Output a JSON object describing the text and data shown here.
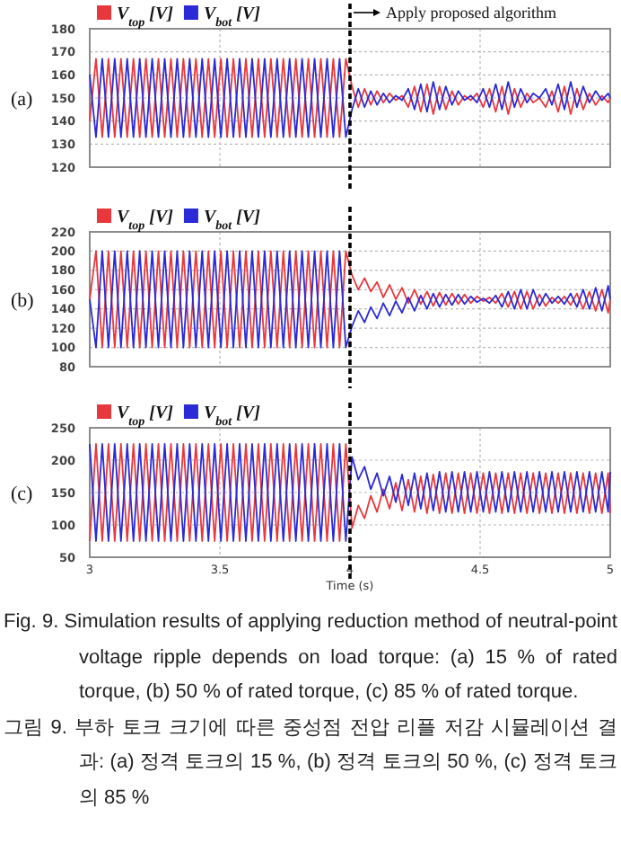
{
  "chart_data": [
    {
      "type": "line",
      "annotations": [
        "(a)"
      ],
      "legend": "top",
      "grid": true,
      "tick_labels": "y",
      "xlim": [
        3,
        5
      ],
      "xticks": [
        3,
        3.5,
        4,
        4.5,
        5
      ],
      "ylim": [
        120,
        180
      ],
      "yticks": [
        120,
        130,
        140,
        150,
        160,
        170,
        180
      ],
      "ref_lines": [
        {
          "axis": "x",
          "value": 4,
          "label": "Apply proposed algorithm",
          "line_style": "dashed",
          "color": "#000000"
        }
      ],
      "x": [
        3.0,
        3.024,
        3.048,
        3.072,
        3.096,
        3.12,
        3.144,
        3.168,
        3.192,
        3.216,
        3.24,
        3.264,
        3.288,
        3.312,
        3.336,
        3.36,
        3.384,
        3.408,
        3.432,
        3.456,
        3.48,
        3.504,
        3.528,
        3.552,
        3.576,
        3.6,
        3.624,
        3.648,
        3.672,
        3.696,
        3.72,
        3.744,
        3.768,
        3.792,
        3.816,
        3.84,
        3.864,
        3.888,
        3.912,
        3.936,
        3.96,
        3.984,
        4.008,
        4.032,
        4.056,
        4.08,
        4.104,
        4.128,
        4.152,
        4.176,
        4.2,
        4.224,
        4.248,
        4.272,
        4.296,
        4.32,
        4.344,
        4.368,
        4.392,
        4.416,
        4.44,
        4.464,
        4.488,
        4.512,
        4.536,
        4.56,
        4.584,
        4.608,
        4.632,
        4.656,
        4.68,
        4.704,
        4.728,
        4.752,
        4.776,
        4.8,
        4.824,
        4.848,
        4.872,
        4.896,
        4.92,
        4.944,
        4.968,
        4.992,
        5.0
      ],
      "series": [
        {
          "name": "V$_{top}$ [V]",
          "color": "#e8383d",
          "values": [
            140,
            167,
            133,
            167,
            133,
            167,
            133,
            167,
            133,
            167,
            133,
            167,
            133,
            167,
            133,
            167,
            133,
            167,
            133,
            167,
            133,
            167,
            133,
            167,
            133,
            167,
            133,
            167,
            133,
            167,
            133,
            167,
            133,
            167,
            133,
            167,
            133,
            167,
            133,
            167,
            133,
            167,
            155,
            146,
            154,
            147,
            153,
            148,
            152,
            149,
            151,
            146,
            155,
            144,
            156,
            143,
            155,
            145,
            153,
            147,
            151,
            149,
            152,
            146,
            154,
            144,
            155,
            143,
            154,
            146,
            152,
            148,
            150,
            146,
            153,
            144,
            155,
            143,
            154,
            145,
            152,
            147,
            151,
            148,
            150
          ]
        },
        {
          "name": "V$_{bot}$ [V]",
          "color": "#2a2ad6",
          "values": [
            160,
            133,
            167,
            133,
            167,
            133,
            167,
            133,
            167,
            133,
            167,
            133,
            167,
            133,
            167,
            133,
            167,
            133,
            167,
            133,
            167,
            133,
            167,
            133,
            167,
            133,
            167,
            133,
            167,
            133,
            167,
            133,
            167,
            133,
            167,
            133,
            167,
            133,
            167,
            133,
            167,
            133,
            145,
            154,
            146,
            153,
            147,
            152,
            148,
            151,
            149,
            154,
            145,
            156,
            144,
            157,
            145,
            155,
            147,
            153,
            149,
            151,
            148,
            154,
            146,
            156,
            145,
            157,
            146,
            154,
            148,
            152,
            150,
            154,
            147,
            156,
            145,
            157,
            146,
            155,
            148,
            153,
            149,
            152,
            150
          ]
        }
      ]
    },
    {
      "type": "line",
      "annotations": [
        "(b)"
      ],
      "legend": "top",
      "grid": true,
      "tick_labels": "y",
      "xlim": [
        3,
        5
      ],
      "xticks": [
        3,
        3.5,
        4,
        4.5,
        5
      ],
      "ylim": [
        80,
        220
      ],
      "yticks": [
        80,
        100,
        120,
        140,
        160,
        180,
        200,
        220
      ],
      "ref_lines": [
        {
          "axis": "x",
          "value": 4,
          "line_style": "dashed",
          "color": "#000000"
        }
      ],
      "x": [
        3.0,
        3.024,
        3.048,
        3.072,
        3.096,
        3.12,
        3.144,
        3.168,
        3.192,
        3.216,
        3.24,
        3.264,
        3.288,
        3.312,
        3.336,
        3.36,
        3.384,
        3.408,
        3.432,
        3.456,
        3.48,
        3.504,
        3.528,
        3.552,
        3.576,
        3.6,
        3.624,
        3.648,
        3.672,
        3.696,
        3.72,
        3.744,
        3.768,
        3.792,
        3.816,
        3.84,
        3.864,
        3.888,
        3.912,
        3.936,
        3.96,
        3.984,
        4.008,
        4.032,
        4.056,
        4.08,
        4.104,
        4.128,
        4.152,
        4.176,
        4.2,
        4.224,
        4.248,
        4.272,
        4.296,
        4.32,
        4.344,
        4.368,
        4.392,
        4.416,
        4.44,
        4.464,
        4.488,
        4.512,
        4.536,
        4.56,
        4.584,
        4.608,
        4.632,
        4.656,
        4.68,
        4.704,
        4.728,
        4.752,
        4.776,
        4.8,
        4.824,
        4.848,
        4.872,
        4.896,
        4.92,
        4.944,
        4.968,
        4.992,
        5.0
      ],
      "series": [
        {
          "name": "V$_{top}$ [V]",
          "color": "#e8383d",
          "values": [
            150,
            200,
            100,
            200,
            100,
            200,
            100,
            200,
            100,
            200,
            100,
            200,
            100,
            200,
            100,
            200,
            100,
            200,
            100,
            200,
            100,
            200,
            100,
            200,
            100,
            200,
            100,
            200,
            100,
            200,
            100,
            200,
            100,
            200,
            100,
            200,
            100,
            200,
            100,
            200,
            100,
            200,
            175,
            160,
            172,
            158,
            168,
            152,
            165,
            150,
            162,
            146,
            160,
            145,
            158,
            143,
            157,
            144,
            156,
            145,
            155,
            146,
            153,
            148,
            152,
            146,
            156,
            142,
            158,
            140,
            158,
            140,
            155,
            143,
            152,
            146,
            153,
            144,
            156,
            140,
            158,
            138,
            160,
            136,
            150
          ]
        },
        {
          "name": "V$_{bot}$ [V]",
          "color": "#2a2ad6",
          "values": [
            150,
            100,
            200,
            100,
            200,
            100,
            200,
            100,
            200,
            100,
            200,
            100,
            200,
            100,
            200,
            100,
            200,
            100,
            200,
            100,
            200,
            100,
            200,
            100,
            200,
            100,
            200,
            100,
            200,
            100,
            200,
            100,
            200,
            100,
            200,
            100,
            200,
            100,
            200,
            100,
            200,
            100,
            122,
            138,
            126,
            142,
            130,
            146,
            133,
            148,
            136,
            152,
            138,
            154,
            140,
            156,
            142,
            155,
            144,
            155,
            145,
            153,
            147,
            151,
            146,
            154,
            142,
            158,
            140,
            160,
            140,
            160,
            143,
            156,
            146,
            153,
            145,
            156,
            142,
            160,
            140,
            162,
            138,
            164,
            150
          ]
        }
      ]
    },
    {
      "type": "line",
      "annotations": [
        "(c)",
        "Fig.  9. Simulation results of applying reduction method of neutral-point voltage ripple depends on load torque: (a) 15 % of rated torque, (b) 50 % of rated torque, (c) 85 % of rated torque.",
        "그림 9. 부하 토크 크기에 따른 중성점 전압 리플 저감 시뮬레이션 결과: (a) 정격 토크의 15 %, (b) 정격 토크의 50 %, (c) 정격 토크의 85 %"
      ],
      "legend": "top",
      "grid": true,
      "xlabel": "Time (s)",
      "xlim": [
        3,
        5
      ],
      "xticks": [
        3,
        3.5,
        4,
        4.5,
        5
      ],
      "ylim": [
        50,
        250
      ],
      "yticks": [
        50,
        100,
        150,
        200,
        250
      ],
      "ref_lines": [
        {
          "axis": "x",
          "value": 4,
          "line_style": "dashed",
          "color": "#000000"
        }
      ],
      "x": [
        3.0,
        3.024,
        3.048,
        3.072,
        3.096,
        3.12,
        3.144,
        3.168,
        3.192,
        3.216,
        3.24,
        3.264,
        3.288,
        3.312,
        3.336,
        3.36,
        3.384,
        3.408,
        3.432,
        3.456,
        3.48,
        3.504,
        3.528,
        3.552,
        3.576,
        3.6,
        3.624,
        3.648,
        3.672,
        3.696,
        3.72,
        3.744,
        3.768,
        3.792,
        3.816,
        3.84,
        3.864,
        3.888,
        3.912,
        3.936,
        3.96,
        3.984,
        4.008,
        4.032,
        4.056,
        4.08,
        4.104,
        4.128,
        4.152,
        4.176,
        4.2,
        4.224,
        4.248,
        4.272,
        4.296,
        4.32,
        4.344,
        4.368,
        4.392,
        4.416,
        4.44,
        4.464,
        4.488,
        4.512,
        4.536,
        4.56,
        4.584,
        4.608,
        4.632,
        4.656,
        4.68,
        4.704,
        4.728,
        4.752,
        4.776,
        4.8,
        4.824,
        4.848,
        4.872,
        4.896,
        4.92,
        4.944,
        4.968,
        4.992,
        5.0
      ],
      "series": [
        {
          "name": "V$_{top}$ [V]",
          "color": "#e8383d",
          "values": [
            75,
            225,
            75,
            225,
            75,
            225,
            75,
            225,
            75,
            225,
            75,
            225,
            75,
            225,
            75,
            225,
            75,
            225,
            75,
            225,
            75,
            225,
            75,
            225,
            75,
            225,
            75,
            225,
            75,
            225,
            75,
            225,
            75,
            225,
            75,
            225,
            75,
            225,
            75,
            225,
            75,
            225,
            95,
            130,
            110,
            145,
            120,
            155,
            125,
            165,
            122,
            170,
            120,
            175,
            118,
            178,
            118,
            180,
            118,
            180,
            118,
            180,
            118,
            180,
            118,
            180,
            118,
            180,
            118,
            180,
            118,
            180,
            118,
            180,
            118,
            180,
            118,
            180,
            118,
            180,
            118,
            180,
            118,
            180,
            118
          ]
        },
        {
          "name": "V$_{bot}$ [V]",
          "color": "#2a2ad6",
          "values": [
            225,
            75,
            225,
            75,
            225,
            75,
            225,
            75,
            225,
            75,
            225,
            75,
            225,
            75,
            225,
            75,
            225,
            75,
            225,
            75,
            225,
            75,
            225,
            75,
            225,
            75,
            225,
            75,
            225,
            75,
            225,
            75,
            225,
            75,
            225,
            75,
            225,
            75,
            225,
            75,
            225,
            75,
            205,
            170,
            190,
            155,
            180,
            145,
            175,
            135,
            178,
            130,
            180,
            125,
            180,
            122,
            182,
            120,
            182,
            120,
            182,
            120,
            182,
            120,
            182,
            120,
            182,
            120,
            182,
            120,
            182,
            120,
            182,
            120,
            182,
            120,
            182,
            120,
            182,
            120,
            182,
            120,
            182,
            120,
            182
          ]
        }
      ]
    }
  ]
}
